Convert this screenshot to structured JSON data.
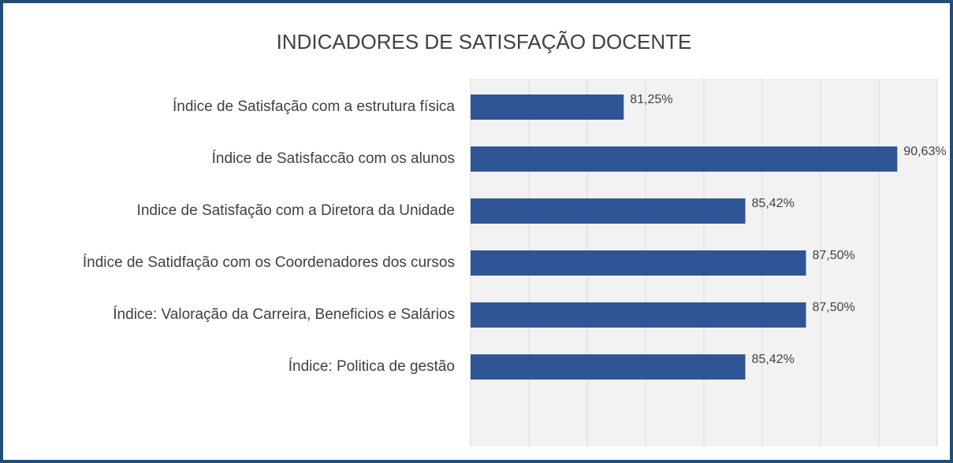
{
  "chart_data": {
    "type": "hbar",
    "title": "INDICADORES DE SATISFAÇÃO DOCENTE",
    "categories": [
      "Índice de Satisfação com a estrutura física",
      "Índice de Satisfaccão com os alunos",
      "Indice de Satisfação com a Diretora da Unidade",
      "Índice de Satidfação com os Coordenadores dos cursos",
      "Índice: Valoração da Carreira, Beneficios e Salários",
      "Índice: Politica de gestão"
    ],
    "values": [
      81.25,
      90.63,
      85.42,
      87.5,
      87.5,
      85.42
    ],
    "value_labels": [
      "81,25%",
      "90,63%",
      "85,42%",
      "87,50%",
      "87,50%",
      "85,42%"
    ],
    "color": "#2f5597",
    "xlim": [
      76,
      92
    ],
    "xticks": [
      76,
      78,
      80,
      82,
      84,
      86,
      88,
      90,
      92
    ],
    "grid": true
  }
}
